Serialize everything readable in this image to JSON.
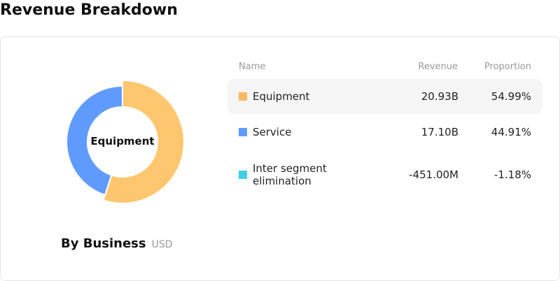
{
  "title": "Revenue Breakdown",
  "chart_data": {
    "type": "pie",
    "subtitle": "By Business",
    "unit": "USD",
    "center_label": "Equipment",
    "columns": {
      "name": "Name",
      "revenue": "Revenue",
      "proportion": "Proportion"
    },
    "slices": [
      {
        "name": "Equipment",
        "revenue": "20.93B",
        "proportion": "54.99%",
        "value": 54.99,
        "color": "#FFC670",
        "swatch": "#FDB863",
        "highlighted": true
      },
      {
        "name": "Service",
        "revenue": "17.10B",
        "proportion": "44.91%",
        "value": 44.91,
        "color": "#5F9BFF",
        "swatch": "#5F9BFF"
      },
      {
        "name": "Inter segment elimination",
        "revenue": "-451.00M",
        "proportion": "-1.18%",
        "value": -1.18,
        "color": "#40D0E8",
        "swatch": "#40D0E8"
      }
    ]
  }
}
